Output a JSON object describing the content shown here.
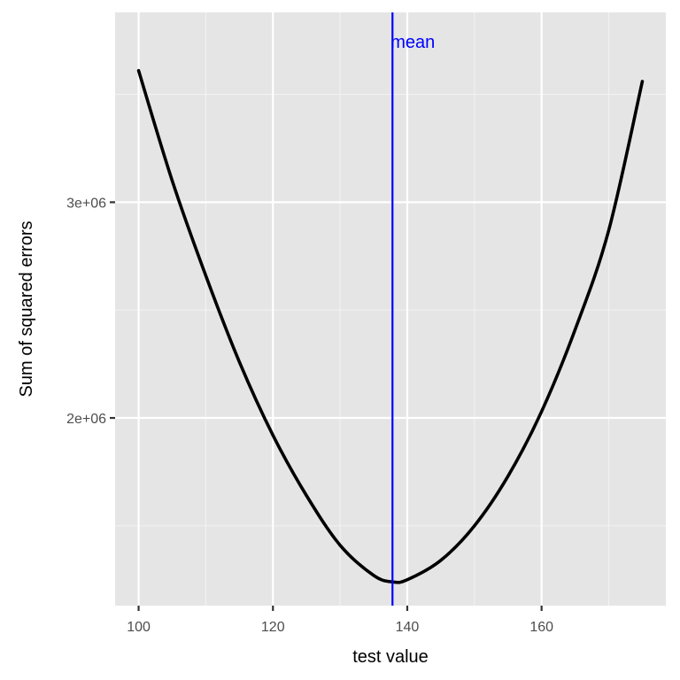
{
  "chart_data": {
    "type": "line",
    "title": "",
    "xlabel": "test value",
    "ylabel": "Sum of squared errors",
    "xlim": [
      96.5,
      178.5
    ],
    "ylim": [
      1130000,
      3880000
    ],
    "x_ticks": [
      100,
      120,
      140,
      160
    ],
    "x_tick_labels": [
      "100",
      "120",
      "140",
      "160"
    ],
    "x_minor_ticks": [
      110,
      130,
      150,
      170
    ],
    "y_ticks": [
      2000000,
      3000000
    ],
    "y_tick_labels": [
      "2e+06",
      "3e+06"
    ],
    "y_minor_ticks": [
      1500000,
      2500000,
      3500000
    ],
    "grid": true,
    "series": [
      {
        "x": [
          100,
          105,
          110,
          115,
          120,
          125,
          130,
          135,
          137.8,
          140,
          145,
          150,
          155,
          160,
          165,
          170,
          175
        ],
        "y": [
          3610000,
          3100000,
          2660000,
          2260000,
          1920000,
          1640000,
          1410000,
          1270000,
          1240000,
          1250000,
          1340000,
          1500000,
          1730000,
          2030000,
          2410000,
          2870000,
          3560000
        ],
        "color": "#000000"
      }
    ],
    "vline": {
      "x": 137.8,
      "label": "mean",
      "color": "#0000ff"
    }
  }
}
